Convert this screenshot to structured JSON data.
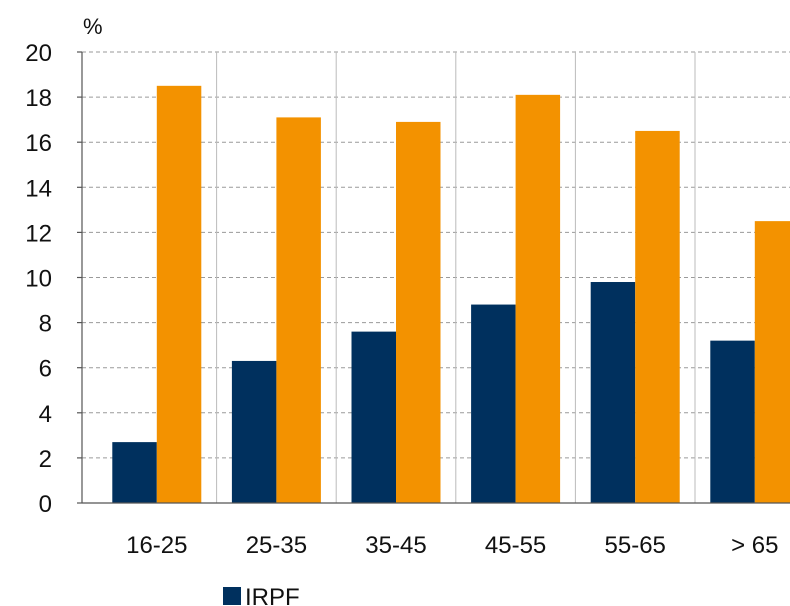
{
  "chart_data": {
    "type": "bar",
    "unit_label": "%",
    "categories": [
      "16-25",
      "25-35",
      "35-45",
      "45-55",
      "55-65",
      "> 65"
    ],
    "series": [
      {
        "name": "IRPF",
        "color": "#00305e",
        "values": [
          2.7,
          6.3,
          7.6,
          8.8,
          9.8,
          7.2
        ]
      },
      {
        "color": "#f39200",
        "values": [
          18.5,
          17.1,
          16.9,
          18.1,
          16.5,
          12.5
        ]
      }
    ],
    "ylim": [
      0,
      20
    ],
    "yticks": [
      "0",
      "2",
      "4",
      "6",
      "8",
      "10",
      "12",
      "14",
      "16",
      "18",
      "20"
    ],
    "grid": true,
    "legend_position": "bottom-left"
  }
}
